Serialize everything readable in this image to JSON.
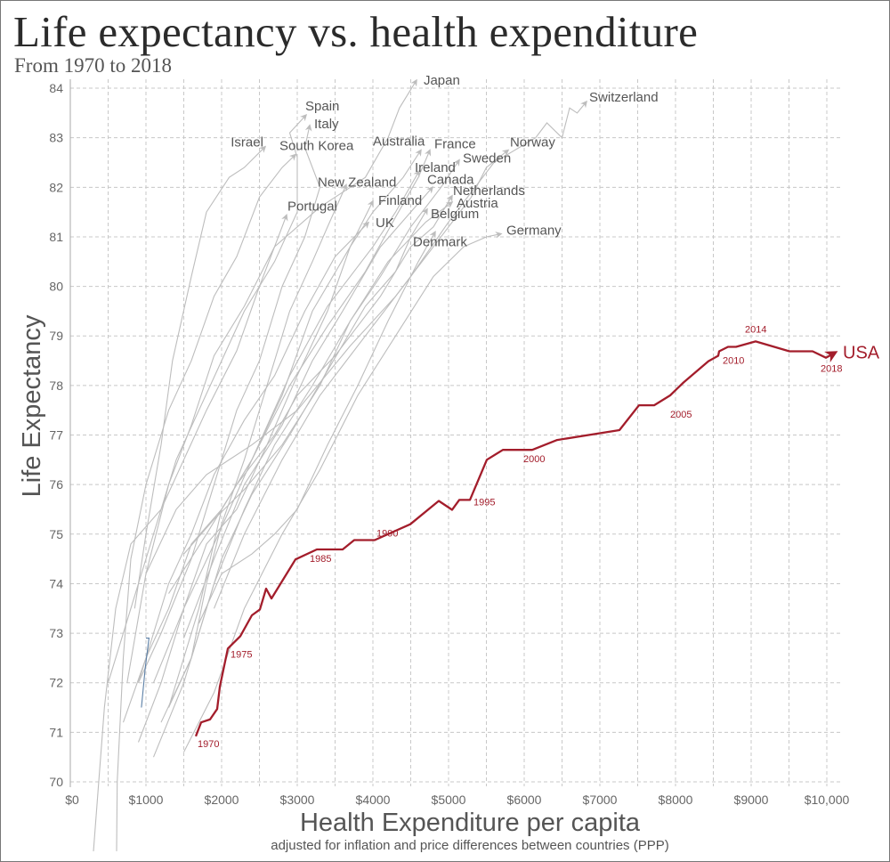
{
  "chart_data": {
    "type": "line",
    "title": "Life expectancy vs. health expenditure",
    "subtitle": "From 1970 to 2018",
    "xlabel": "Health Expenditure per capita",
    "xlabel_note": "adjusted for inflation and price differences between countries (PPP)",
    "ylabel": "Life Expectancy",
    "xlim": [
      0,
      10000
    ],
    "ylim": [
      70,
      84
    ],
    "x_ticks": [
      0,
      1000,
      2000,
      3000,
      4000,
      5000,
      6000,
      7000,
      8000,
      9000,
      10000
    ],
    "x_tick_labels": [
      "$0",
      "$1000",
      "$2000",
      "$3000",
      "$4000",
      "$5000",
      "$6000",
      "$7000",
      "$8000",
      "$9000",
      "$10,000"
    ],
    "y_ticks": [
      70,
      71,
      72,
      73,
      74,
      75,
      76,
      77,
      78,
      79,
      80,
      81,
      82,
      83,
      84
    ],
    "y_tick_labels": [
      "70",
      "71",
      "72",
      "73",
      "74",
      "75",
      "76",
      "77",
      "78",
      "79",
      "80",
      "81",
      "82",
      "83",
      "84"
    ],
    "grid": true,
    "colors": {
      "highlight": "#a31d2b",
      "others": "#bdbdbd",
      "blue": "#5b7fa6"
    },
    "highlight": {
      "name": "USA",
      "points": [
        [
          1659,
          70.92
        ],
        [
          1729,
          71.2
        ],
        [
          1847,
          71.26
        ],
        [
          1941,
          71.47
        ],
        [
          1976,
          71.92
        ],
        [
          2082,
          72.69
        ],
        [
          2247,
          72.94
        ],
        [
          2400,
          73.36
        ],
        [
          2506,
          73.48
        ],
        [
          2588,
          73.9
        ],
        [
          2659,
          73.7
        ],
        [
          2976,
          74.49
        ],
        [
          3259,
          74.69
        ],
        [
          3600,
          74.69
        ],
        [
          3753,
          74.88
        ],
        [
          4024,
          74.88
        ],
        [
          4494,
          75.2
        ],
        [
          4871,
          75.67
        ],
        [
          5047,
          75.49
        ],
        [
          5141,
          75.69
        ],
        [
          5282,
          75.69
        ],
        [
          5506,
          76.5
        ],
        [
          5718,
          76.7
        ],
        [
          6106,
          76.7
        ],
        [
          6435,
          76.9
        ],
        [
          7259,
          77.1
        ],
        [
          7518,
          77.6
        ],
        [
          7718,
          77.6
        ],
        [
          7929,
          77.8
        ],
        [
          8106,
          78.06
        ],
        [
          8435,
          78.49
        ],
        [
          8565,
          78.6
        ],
        [
          8576,
          78.69
        ],
        [
          8694,
          78.78
        ],
        [
          8800,
          78.78
        ],
        [
          9059,
          78.89
        ],
        [
          9506,
          78.69
        ],
        [
          9812,
          78.69
        ],
        [
          9988,
          78.56
        ],
        [
          10118,
          78.67
        ]
      ],
      "year_labels": [
        {
          "year": "1970",
          "x": 1659,
          "y": 70.92
        },
        {
          "year": "1975",
          "x": 2082,
          "y": 72.69
        },
        {
          "year": "1985",
          "x": 3400,
          "y": 74.69
        },
        {
          "year": "1990",
          "x": 4494,
          "y": 75.2
        },
        {
          "year": "1995",
          "x": 5282,
          "y": 75.69
        },
        {
          "year": "2000",
          "x": 6106,
          "y": 76.7
        },
        {
          "year": "2005",
          "x": 7718,
          "y": 77.6
        },
        {
          "year": "2010",
          "x": 8576,
          "y": 78.69
        },
        {
          "year": "2014",
          "x": 9059,
          "y": 78.89
        },
        {
          "year": "2018",
          "x": 9988,
          "y": 78.56
        }
      ]
    },
    "series": [
      {
        "name": "Japan",
        "points": [
          [
            750,
            72
          ],
          [
            1000,
            74.2
          ],
          [
            1300,
            76.0
          ],
          [
            1600,
            77.2
          ],
          [
            1900,
            78.6
          ],
          [
            2300,
            79.6
          ],
          [
            2700,
            80.8
          ],
          [
            3300,
            81.6
          ],
          [
            3900,
            82.2
          ],
          [
            4200,
            83.0
          ],
          [
            4350,
            83.6
          ],
          [
            4576,
            84.16
          ]
        ]
      },
      {
        "name": "Switzerland",
        "points": [
          [
            1900,
            73.5
          ],
          [
            2300,
            75
          ],
          [
            2800,
            76.5
          ],
          [
            3300,
            77.8
          ],
          [
            3900,
            79
          ],
          [
            4500,
            80.2
          ],
          [
            5000,
            81.3
          ],
          [
            5600,
            82.5
          ],
          [
            6150,
            83.0
          ],
          [
            6300,
            83.3
          ],
          [
            6500,
            83.0
          ],
          [
            6600,
            83.6
          ],
          [
            6700,
            83.5
          ],
          [
            6824,
            83.73
          ]
        ]
      },
      {
        "name": "Spain",
        "points": [
          [
            500,
            72
          ],
          [
            800,
            73.5
          ],
          [
            1000,
            74.5
          ],
          [
            1400,
            76.5
          ],
          [
            1700,
            77.5
          ],
          [
            2000,
            78.5
          ],
          [
            2300,
            79.5
          ],
          [
            2700,
            80.5
          ],
          [
            3000,
            81.5
          ],
          [
            3000,
            82.6
          ],
          [
            2900,
            83.1
          ],
          [
            3118,
            83.46
          ]
        ]
      },
      {
        "name": "Italy",
        "points": [
          [
            900,
            72
          ],
          [
            1200,
            73
          ],
          [
            1600,
            74.5
          ],
          [
            1900,
            76
          ],
          [
            2200,
            77.5
          ],
          [
            2500,
            78.5
          ],
          [
            2800,
            80
          ],
          [
            3100,
            81
          ],
          [
            3300,
            82
          ],
          [
            3100,
            82.8
          ],
          [
            3165,
            83.25
          ]
        ]
      },
      {
        "name": "Israel",
        "points": [
          [
            850,
            73.5
          ],
          [
            1000,
            75
          ],
          [
            1200,
            76.8
          ],
          [
            1350,
            78.5
          ],
          [
            1600,
            80.2
          ],
          [
            1800,
            81.5
          ],
          [
            2100,
            82.2
          ],
          [
            2300,
            82.4
          ],
          [
            2576,
            82.82
          ]
        ]
      },
      {
        "name": "South Korea",
        "points": [
          [
            612,
            68.6
          ],
          [
            620,
            70
          ],
          [
            700,
            72.5
          ],
          [
            800,
            74.5
          ],
          [
            1000,
            76
          ],
          [
            1300,
            77.5
          ],
          [
            1600,
            78.5
          ],
          [
            1900,
            79.8
          ],
          [
            2200,
            80.6
          ],
          [
            2500,
            81.8
          ],
          [
            2800,
            82.4
          ],
          [
            2976,
            82.66
          ]
        ]
      },
      {
        "name": "Australia",
        "points": [
          [
            1300,
            71.5
          ],
          [
            1700,
            73.5
          ],
          [
            2000,
            75.5
          ],
          [
            2400,
            76.5
          ],
          [
            2800,
            77.8
          ],
          [
            3200,
            79.5
          ],
          [
            3700,
            80.8
          ],
          [
            4000,
            81.5
          ],
          [
            4400,
            82.2
          ],
          [
            4635,
            82.75
          ]
        ]
      },
      {
        "name": "France",
        "points": [
          [
            1100,
            72.0
          ],
          [
            1500,
            73.5
          ],
          [
            1900,
            74.8
          ],
          [
            2400,
            76.5
          ],
          [
            2900,
            78.0
          ],
          [
            3400,
            79.2
          ],
          [
            3900,
            80.3
          ],
          [
            4300,
            81.4
          ],
          [
            4600,
            82.2
          ],
          [
            4753,
            82.75
          ]
        ]
      },
      {
        "name": "Norway",
        "points": [
          [
            1000,
            74.2
          ],
          [
            1400,
            75.5
          ],
          [
            1800,
            76.2
          ],
          [
            2400,
            76.8
          ],
          [
            3000,
            77.5
          ],
          [
            3700,
            78.8
          ],
          [
            4300,
            79.8
          ],
          [
            4800,
            80.8
          ],
          [
            5300,
            81.8
          ],
          [
            5500,
            82.4
          ],
          [
            5788,
            82.75
          ]
        ]
      },
      {
        "name": "Sweden",
        "points": [
          [
            1500,
            74.6
          ],
          [
            1900,
            75.3
          ],
          [
            2300,
            75.9
          ],
          [
            2800,
            76.8
          ],
          [
            3300,
            78.0
          ],
          [
            3700,
            79.3
          ],
          [
            4100,
            80.2
          ],
          [
            4500,
            81.2
          ],
          [
            4900,
            82.0
          ],
          [
            5141,
            82.55
          ]
        ]
      },
      {
        "name": "Ireland",
        "points": [
          [
            700,
            71.2
          ],
          [
            1000,
            72.5
          ],
          [
            1300,
            73.5
          ],
          [
            1600,
            74.8
          ],
          [
            2000,
            75.5
          ],
          [
            2400,
            76.5
          ],
          [
            2900,
            78.2
          ],
          [
            3400,
            79.6
          ],
          [
            4000,
            80.8
          ],
          [
            4300,
            81.5
          ],
          [
            4612,
            82.33
          ]
        ]
      },
      {
        "name": "Canada",
        "points": [
          [
            1500,
            72.9
          ],
          [
            1900,
            74.5
          ],
          [
            2300,
            76.0
          ],
          [
            2800,
            77.2
          ],
          [
            3200,
            78.5
          ],
          [
            3600,
            79.5
          ],
          [
            4100,
            80.8
          ],
          [
            4500,
            81.5
          ],
          [
            4788,
            82.0
          ]
        ]
      },
      {
        "name": "New Zealand",
        "points": [
          [
            1300,
            71.5
          ],
          [
            1600,
            72.5
          ],
          [
            1800,
            74.0
          ],
          [
            2000,
            75.2
          ],
          [
            2300,
            76.5
          ],
          [
            2600,
            78.0
          ],
          [
            2900,
            79.5
          ],
          [
            3200,
            80.5
          ],
          [
            3400,
            81.2
          ],
          [
            3647,
            82.05
          ]
        ]
      },
      {
        "name": "Finland",
        "points": [
          [
            900,
            70.8
          ],
          [
            1200,
            72.0
          ],
          [
            1500,
            73.5
          ],
          [
            1800,
            74.8
          ],
          [
            2200,
            75.5
          ],
          [
            2600,
            76.8
          ],
          [
            3000,
            78.2
          ],
          [
            3400,
            79.5
          ],
          [
            3700,
            80.8
          ],
          [
            4000,
            81.72
          ]
        ]
      },
      {
        "name": "Netherlands",
        "points": [
          [
            1300,
            73.8
          ],
          [
            1800,
            75.0
          ],
          [
            2200,
            76.0
          ],
          [
            2700,
            77.0
          ],
          [
            3000,
            77.8
          ],
          [
            3500,
            78.6
          ],
          [
            4100,
            79.8
          ],
          [
            4500,
            80.8
          ],
          [
            4800,
            81.2
          ],
          [
            5047,
            81.83
          ]
        ]
      },
      {
        "name": "Austria",
        "points": [
          [
            1100,
            70.5
          ],
          [
            1500,
            72
          ],
          [
            1900,
            74
          ],
          [
            2300,
            75.5
          ],
          [
            2700,
            76.8
          ],
          [
            3200,
            78.0
          ],
          [
            3700,
            79.3
          ],
          [
            4200,
            80.5
          ],
          [
            4700,
            81.3
          ],
          [
            5047,
            81.7
          ]
        ]
      },
      {
        "name": "Portugal",
        "points": [
          [
            306,
            68.6
          ],
          [
            450,
            71.5
          ],
          [
            600,
            73.5
          ],
          [
            800,
            74.8
          ],
          [
            1200,
            75.5
          ],
          [
            1500,
            76.5
          ],
          [
            1800,
            77.5
          ],
          [
            2200,
            78.7
          ],
          [
            2500,
            80.0
          ],
          [
            2700,
            80.8
          ],
          [
            2859,
            81.44
          ]
        ]
      },
      {
        "name": "UK",
        "points": [
          [
            900,
            72.0
          ],
          [
            1100,
            73.0
          ],
          [
            1300,
            74.0
          ],
          [
            1600,
            75.0
          ],
          [
            1900,
            76.2
          ],
          [
            2300,
            77.3
          ],
          [
            2700,
            78.2
          ],
          [
            3100,
            79.5
          ],
          [
            3500,
            80.6
          ],
          [
            3941,
            81.29
          ]
        ]
      },
      {
        "name": "Belgium",
        "points": [
          [
            1200,
            71.2
          ],
          [
            1600,
            72.5
          ],
          [
            2000,
            74.5
          ],
          [
            2400,
            75.8
          ],
          [
            2900,
            77.0
          ],
          [
            3400,
            78.3
          ],
          [
            3900,
            79.6
          ],
          [
            4300,
            80.3
          ],
          [
            4500,
            81.0
          ],
          [
            4718,
            81.56
          ]
        ]
      },
      {
        "name": "Denmark",
        "points": [
          [
            1700,
            73.2
          ],
          [
            2000,
            74.2
          ],
          [
            2400,
            74.6
          ],
          [
            2700,
            75.0
          ],
          [
            3000,
            75.5
          ],
          [
            3400,
            76.8
          ],
          [
            3800,
            78.0
          ],
          [
            4200,
            79.3
          ],
          [
            4600,
            80.5
          ],
          [
            4824,
            81.1
          ]
        ]
      },
      {
        "name": "Germany",
        "points": [
          [
            1500,
            70.6
          ],
          [
            1900,
            71.8
          ],
          [
            2300,
            73.5
          ],
          [
            2800,
            75.0
          ],
          [
            3300,
            76.3
          ],
          [
            3800,
            77.8
          ],
          [
            4300,
            79.0
          ],
          [
            4800,
            80.2
          ],
          [
            5200,
            80.8
          ],
          [
            5500,
            81.0
          ],
          [
            5694,
            81.06
          ]
        ]
      },
      {
        "name": "",
        "color": "blue",
        "points": [
          [
            940,
            71.5
          ],
          [
            990,
            72.3
          ],
          [
            1040,
            72.9
          ],
          [
            1000,
            72.9
          ]
        ]
      }
    ]
  }
}
